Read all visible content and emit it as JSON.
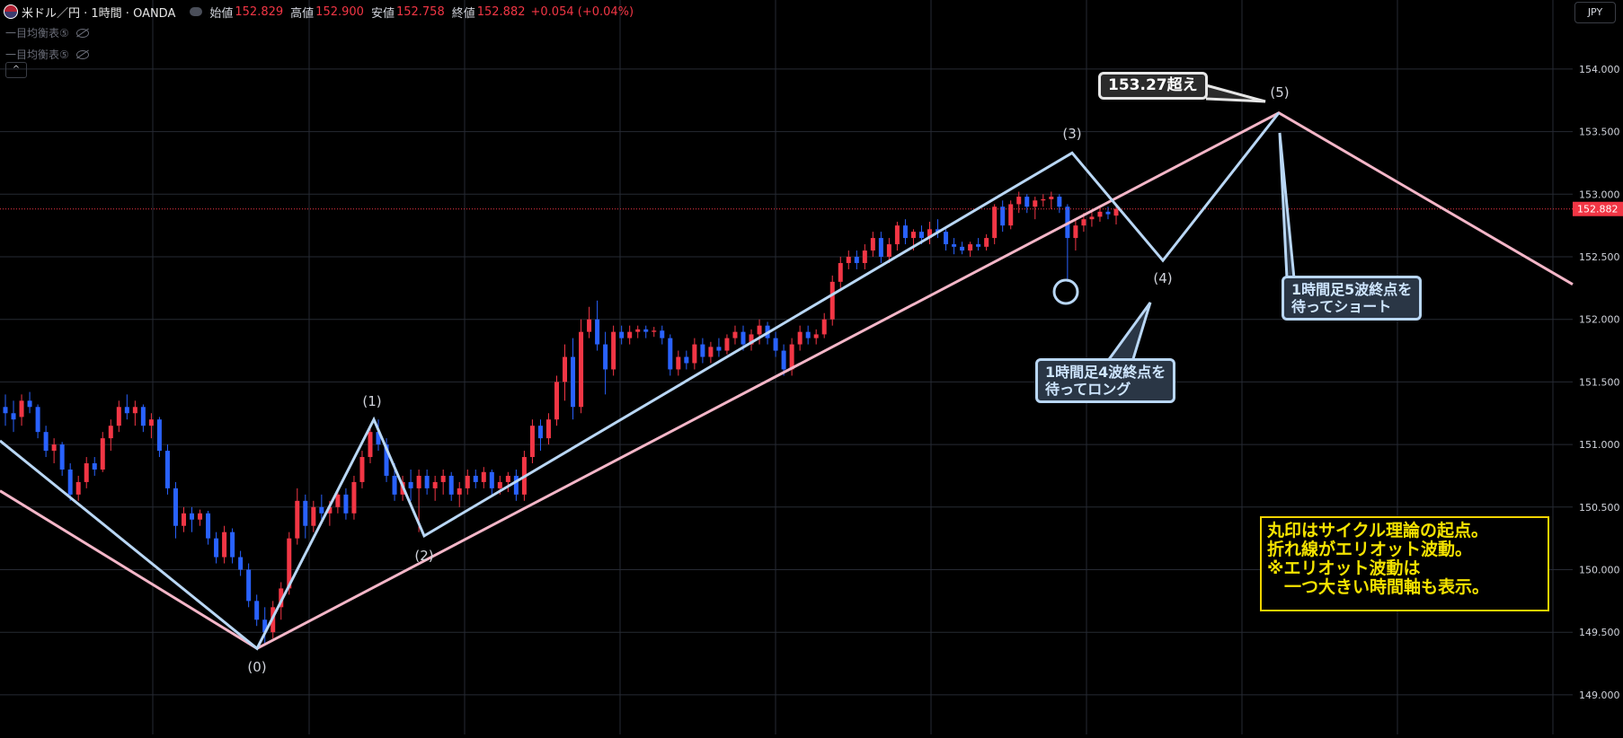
{
  "header": {
    "symbol": "米ドル／円 · 1時間 · OANDA",
    "open_label": "始値",
    "open": "152.829",
    "high_label": "高値",
    "high": "152.900",
    "low_label": "安値",
    "low": "152.758",
    "close_label": "終値",
    "close": "152.882",
    "change": "+0.054 (+0.04%)"
  },
  "indicators": [
    "一目均衡表⑤",
    "一目均衡表⑤"
  ],
  "collapse_icon": "^",
  "currency_button": "JPY",
  "callouts": {
    "target": "153.27超え",
    "long_line1": "1時間足4波終点を",
    "long_line2": "待ってロング",
    "short_line1": "1時間足5波終点を",
    "short_line2": "待ってショート"
  },
  "note": [
    "丸印はサイクル理論の起点。",
    "折れ線がエリオット波動。",
    "※エリオット波動は",
    "　一つ大きい時間軸も表示。"
  ],
  "colors": {
    "up": "#f23645",
    "down": "#2962ff",
    "wave": "#b9d7f5",
    "trend": "#f4b6c8",
    "note": "#f5d400"
  },
  "chart_data": {
    "type": "candlestick",
    "instrument": "USD/JPY",
    "timeframe": "1時間",
    "ylim": [
      148.8,
      154.5
    ],
    "y_ticks": [
      "154.000",
      "153.500",
      "153.000",
      "152.500",
      "152.000",
      "151.500",
      "151.000",
      "150.500",
      "150.000",
      "149.500",
      "149.000"
    ],
    "last_price_label": "152.882",
    "last_price": 152.882,
    "candles": [
      {
        "o": 151.3,
        "h": 151.4,
        "l": 151.15,
        "c": 151.25
      },
      {
        "o": 151.25,
        "h": 151.35,
        "l": 151.1,
        "c": 151.2
      },
      {
        "o": 151.22,
        "h": 151.4,
        "l": 151.15,
        "c": 151.35
      },
      {
        "o": 151.35,
        "h": 151.42,
        "l": 151.25,
        "c": 151.3
      },
      {
        "o": 151.3,
        "h": 151.32,
        "l": 151.05,
        "c": 151.1
      },
      {
        "o": 151.1,
        "h": 151.15,
        "l": 150.9,
        "c": 150.95
      },
      {
        "o": 150.95,
        "h": 151.05,
        "l": 150.85,
        "c": 151.0
      },
      {
        "o": 151.0,
        "h": 151.02,
        "l": 150.75,
        "c": 150.8
      },
      {
        "o": 150.8,
        "h": 150.85,
        "l": 150.55,
        "c": 150.6
      },
      {
        "o": 150.6,
        "h": 150.75,
        "l": 150.55,
        "c": 150.7
      },
      {
        "o": 150.7,
        "h": 150.9,
        "l": 150.65,
        "c": 150.85
      },
      {
        "o": 150.85,
        "h": 150.9,
        "l": 150.75,
        "c": 150.8
      },
      {
        "o": 150.8,
        "h": 151.1,
        "l": 150.78,
        "c": 151.05
      },
      {
        "o": 151.05,
        "h": 151.2,
        "l": 150.95,
        "c": 151.15
      },
      {
        "o": 151.15,
        "h": 151.35,
        "l": 151.1,
        "c": 151.3
      },
      {
        "o": 151.3,
        "h": 151.4,
        "l": 151.2,
        "c": 151.25
      },
      {
        "o": 151.25,
        "h": 151.35,
        "l": 151.15,
        "c": 151.3
      },
      {
        "o": 151.3,
        "h": 151.32,
        "l": 151.1,
        "c": 151.15
      },
      {
        "o": 151.15,
        "h": 151.25,
        "l": 151.05,
        "c": 151.2
      },
      {
        "o": 151.2,
        "h": 151.22,
        "l": 150.9,
        "c": 150.95
      },
      {
        "o": 150.95,
        "h": 151.0,
        "l": 150.6,
        "c": 150.65
      },
      {
        "o": 150.65,
        "h": 150.7,
        "l": 150.25,
        "c": 150.35
      },
      {
        "o": 150.35,
        "h": 150.5,
        "l": 150.3,
        "c": 150.45
      },
      {
        "o": 150.45,
        "h": 150.5,
        "l": 150.3,
        "c": 150.4
      },
      {
        "o": 150.4,
        "h": 150.48,
        "l": 150.35,
        "c": 150.45
      },
      {
        "o": 150.45,
        "h": 150.47,
        "l": 150.2,
        "c": 150.25
      },
      {
        "o": 150.25,
        "h": 150.3,
        "l": 150.05,
        "c": 150.1
      },
      {
        "o": 150.1,
        "h": 150.35,
        "l": 150.05,
        "c": 150.3
      },
      {
        "o": 150.3,
        "h": 150.33,
        "l": 150.05,
        "c": 150.1
      },
      {
        "o": 150.1,
        "h": 150.15,
        "l": 149.95,
        "c": 150.0
      },
      {
        "o": 150.0,
        "h": 150.05,
        "l": 149.7,
        "c": 149.75
      },
      {
        "o": 149.75,
        "h": 149.8,
        "l": 149.55,
        "c": 149.6
      },
      {
        "o": 149.6,
        "h": 149.7,
        "l": 149.4,
        "c": 149.5
      },
      {
        "o": 149.5,
        "h": 149.75,
        "l": 149.45,
        "c": 149.7
      },
      {
        "o": 149.7,
        "h": 149.9,
        "l": 149.6,
        "c": 149.85
      },
      {
        "o": 149.85,
        "h": 150.3,
        "l": 149.8,
        "c": 150.25
      },
      {
        "o": 150.25,
        "h": 150.65,
        "l": 150.2,
        "c": 150.55
      },
      {
        "o": 150.55,
        "h": 150.6,
        "l": 150.25,
        "c": 150.35
      },
      {
        "o": 150.35,
        "h": 150.55,
        "l": 150.3,
        "c": 150.5
      },
      {
        "o": 150.5,
        "h": 150.6,
        "l": 150.4,
        "c": 150.45
      },
      {
        "o": 150.45,
        "h": 150.55,
        "l": 150.35,
        "c": 150.5
      },
      {
        "o": 150.5,
        "h": 150.65,
        "l": 150.45,
        "c": 150.6
      },
      {
        "o": 150.6,
        "h": 150.65,
        "l": 150.4,
        "c": 150.45
      },
      {
        "o": 150.45,
        "h": 150.75,
        "l": 150.4,
        "c": 150.7
      },
      {
        "o": 150.7,
        "h": 150.95,
        "l": 150.65,
        "c": 150.9
      },
      {
        "o": 150.9,
        "h": 151.15,
        "l": 150.85,
        "c": 151.1
      },
      {
        "o": 151.1,
        "h": 151.2,
        "l": 150.95,
        "c": 151.0
      },
      {
        "o": 151.0,
        "h": 151.05,
        "l": 150.7,
        "c": 150.75
      },
      {
        "o": 150.75,
        "h": 150.85,
        "l": 150.55,
        "c": 150.6
      },
      {
        "o": 150.6,
        "h": 150.75,
        "l": 150.55,
        "c": 150.7
      },
      {
        "o": 150.7,
        "h": 150.8,
        "l": 150.55,
        "c": 150.65
      },
      {
        "o": 150.65,
        "h": 150.8,
        "l": 150.3,
        "c": 150.75
      },
      {
        "o": 150.75,
        "h": 150.8,
        "l": 150.6,
        "c": 150.65
      },
      {
        "o": 150.65,
        "h": 150.75,
        "l": 150.55,
        "c": 150.7
      },
      {
        "o": 150.7,
        "h": 150.8,
        "l": 150.6,
        "c": 150.75
      },
      {
        "o": 150.75,
        "h": 150.78,
        "l": 150.55,
        "c": 150.6
      },
      {
        "o": 150.6,
        "h": 150.7,
        "l": 150.5,
        "c": 150.65
      },
      {
        "o": 150.65,
        "h": 150.8,
        "l": 150.6,
        "c": 150.75
      },
      {
        "o": 150.75,
        "h": 150.8,
        "l": 150.65,
        "c": 150.7
      },
      {
        "o": 150.7,
        "h": 150.82,
        "l": 150.65,
        "c": 150.78
      },
      {
        "o": 150.78,
        "h": 150.8,
        "l": 150.6,
        "c": 150.65
      },
      {
        "o": 150.65,
        "h": 150.75,
        "l": 150.6,
        "c": 150.7
      },
      {
        "o": 150.7,
        "h": 150.78,
        "l": 150.62,
        "c": 150.75
      },
      {
        "o": 150.75,
        "h": 150.8,
        "l": 150.55,
        "c": 150.6
      },
      {
        "o": 150.6,
        "h": 150.95,
        "l": 150.55,
        "c": 150.9
      },
      {
        "o": 150.9,
        "h": 151.2,
        "l": 150.85,
        "c": 151.15
      },
      {
        "o": 151.15,
        "h": 151.2,
        "l": 150.95,
        "c": 151.05
      },
      {
        "o": 151.05,
        "h": 151.25,
        "l": 151.0,
        "c": 151.2
      },
      {
        "o": 151.2,
        "h": 151.55,
        "l": 151.15,
        "c": 151.5
      },
      {
        "o": 151.5,
        "h": 151.8,
        "l": 151.35,
        "c": 151.7
      },
      {
        "o": 151.7,
        "h": 151.85,
        "l": 151.2,
        "c": 151.3
      },
      {
        "o": 151.3,
        "h": 152.0,
        "l": 151.25,
        "c": 151.9
      },
      {
        "o": 151.9,
        "h": 152.1,
        "l": 151.85,
        "c": 152.0
      },
      {
        "o": 152.0,
        "h": 152.15,
        "l": 151.75,
        "c": 151.8
      },
      {
        "o": 151.8,
        "h": 151.9,
        "l": 151.4,
        "c": 151.6
      },
      {
        "o": 151.6,
        "h": 151.95,
        "l": 151.55,
        "c": 151.9
      },
      {
        "o": 151.9,
        "h": 151.95,
        "l": 151.8,
        "c": 151.85
      },
      {
        "o": 151.85,
        "h": 151.95,
        "l": 151.8,
        "c": 151.9
      },
      {
        "o": 151.9,
        "h": 151.95,
        "l": 151.85,
        "c": 151.92
      },
      {
        "o": 151.92,
        "h": 151.95,
        "l": 151.85,
        "c": 151.9
      },
      {
        "o": 151.9,
        "h": 151.94,
        "l": 151.86,
        "c": 151.91
      },
      {
        "o": 151.91,
        "h": 151.95,
        "l": 151.8,
        "c": 151.85
      },
      {
        "o": 151.85,
        "h": 151.88,
        "l": 151.55,
        "c": 151.6
      },
      {
        "o": 151.6,
        "h": 151.75,
        "l": 151.55,
        "c": 151.7
      },
      {
        "o": 151.7,
        "h": 151.75,
        "l": 151.6,
        "c": 151.65
      },
      {
        "o": 151.65,
        "h": 151.85,
        "l": 151.6,
        "c": 151.8
      },
      {
        "o": 151.8,
        "h": 151.85,
        "l": 151.65,
        "c": 151.7
      },
      {
        "o": 151.7,
        "h": 151.82,
        "l": 151.65,
        "c": 151.78
      },
      {
        "o": 151.78,
        "h": 151.85,
        "l": 151.7,
        "c": 151.75
      },
      {
        "o": 151.75,
        "h": 151.88,
        "l": 151.72,
        "c": 151.85
      },
      {
        "o": 151.85,
        "h": 151.95,
        "l": 151.8,
        "c": 151.9
      },
      {
        "o": 151.9,
        "h": 151.95,
        "l": 151.75,
        "c": 151.8
      },
      {
        "o": 151.8,
        "h": 151.92,
        "l": 151.75,
        "c": 151.88
      },
      {
        "o": 151.88,
        "h": 152.0,
        "l": 151.8,
        "c": 151.95
      },
      {
        "o": 151.95,
        "h": 151.98,
        "l": 151.8,
        "c": 151.85
      },
      {
        "o": 151.85,
        "h": 151.9,
        "l": 151.7,
        "c": 151.75
      },
      {
        "o": 151.75,
        "h": 151.8,
        "l": 151.55,
        "c": 151.6
      },
      {
        "o": 151.6,
        "h": 151.85,
        "l": 151.55,
        "c": 151.8
      },
      {
        "o": 151.8,
        "h": 151.95,
        "l": 151.75,
        "c": 151.9
      },
      {
        "o": 151.9,
        "h": 151.95,
        "l": 151.8,
        "c": 151.85
      },
      {
        "o": 151.85,
        "h": 151.92,
        "l": 151.8,
        "c": 151.88
      },
      {
        "o": 151.88,
        "h": 152.05,
        "l": 151.85,
        "c": 152.0
      },
      {
        "o": 152.0,
        "h": 152.35,
        "l": 151.95,
        "c": 152.3
      },
      {
        "o": 152.3,
        "h": 152.5,
        "l": 152.25,
        "c": 152.45
      },
      {
        "o": 152.45,
        "h": 152.55,
        "l": 152.4,
        "c": 152.5
      },
      {
        "o": 152.5,
        "h": 152.55,
        "l": 152.4,
        "c": 152.45
      },
      {
        "o": 152.45,
        "h": 152.6,
        "l": 152.4,
        "c": 152.55
      },
      {
        "o": 152.55,
        "h": 152.7,
        "l": 152.5,
        "c": 152.65
      },
      {
        "o": 152.65,
        "h": 152.7,
        "l": 152.45,
        "c": 152.5
      },
      {
        "o": 152.5,
        "h": 152.65,
        "l": 152.45,
        "c": 152.6
      },
      {
        "o": 152.6,
        "h": 152.78,
        "l": 152.55,
        "c": 152.75
      },
      {
        "o": 152.75,
        "h": 152.8,
        "l": 152.6,
        "c": 152.65
      },
      {
        "o": 152.65,
        "h": 152.72,
        "l": 152.55,
        "c": 152.7
      },
      {
        "o": 152.7,
        "h": 152.75,
        "l": 152.6,
        "c": 152.65
      },
      {
        "o": 152.65,
        "h": 152.78,
        "l": 152.6,
        "c": 152.72
      },
      {
        "o": 152.72,
        "h": 152.8,
        "l": 152.65,
        "c": 152.7
      },
      {
        "o": 152.7,
        "h": 152.72,
        "l": 152.55,
        "c": 152.6
      },
      {
        "o": 152.6,
        "h": 152.65,
        "l": 152.52,
        "c": 152.58
      },
      {
        "o": 152.58,
        "h": 152.62,
        "l": 152.52,
        "c": 152.55
      },
      {
        "o": 152.55,
        "h": 152.62,
        "l": 152.5,
        "c": 152.6
      },
      {
        "o": 152.6,
        "h": 152.65,
        "l": 152.55,
        "c": 152.58
      },
      {
        "o": 152.58,
        "h": 152.68,
        "l": 152.55,
        "c": 152.65
      },
      {
        "o": 152.65,
        "h": 152.92,
        "l": 152.6,
        "c": 152.9
      },
      {
        "o": 152.9,
        "h": 152.95,
        "l": 152.7,
        "c": 152.75
      },
      {
        "o": 152.75,
        "h": 152.95,
        "l": 152.72,
        "c": 152.92
      },
      {
        "o": 152.92,
        "h": 153.02,
        "l": 152.85,
        "c": 152.98
      },
      {
        "o": 152.98,
        "h": 153.0,
        "l": 152.85,
        "c": 152.9
      },
      {
        "o": 152.9,
        "h": 152.98,
        "l": 152.8,
        "c": 152.95
      },
      {
        "o": 152.95,
        "h": 153.0,
        "l": 152.9,
        "c": 152.96
      },
      {
        "o": 152.96,
        "h": 153.02,
        "l": 152.88,
        "c": 152.98
      },
      {
        "o": 152.98,
        "h": 153.0,
        "l": 152.85,
        "c": 152.9
      },
      {
        "o": 152.9,
        "h": 152.92,
        "l": 152.3,
        "c": 152.65
      },
      {
        "o": 152.65,
        "h": 152.8,
        "l": 152.55,
        "c": 152.75
      },
      {
        "o": 152.75,
        "h": 152.85,
        "l": 152.7,
        "c": 152.8
      },
      {
        "o": 152.8,
        "h": 152.86,
        "l": 152.74,
        "c": 152.82
      },
      {
        "o": 152.82,
        "h": 152.9,
        "l": 152.78,
        "c": 152.86
      },
      {
        "o": 152.86,
        "h": 152.9,
        "l": 152.8,
        "c": 152.84
      },
      {
        "o": 152.829,
        "h": 152.9,
        "l": 152.758,
        "c": 152.882
      }
    ],
    "elliott_waves": {
      "labels": [
        "(0)",
        "(1)",
        "(2)",
        "(3)",
        "(4)",
        "(5)"
      ],
      "points": [
        149.37,
        151.2,
        150.27,
        153.33,
        152.47,
        153.65
      ]
    },
    "trend_line": {
      "from": 149.37,
      "to": 153.65
    },
    "cycle_circle_price": 152.22
  }
}
